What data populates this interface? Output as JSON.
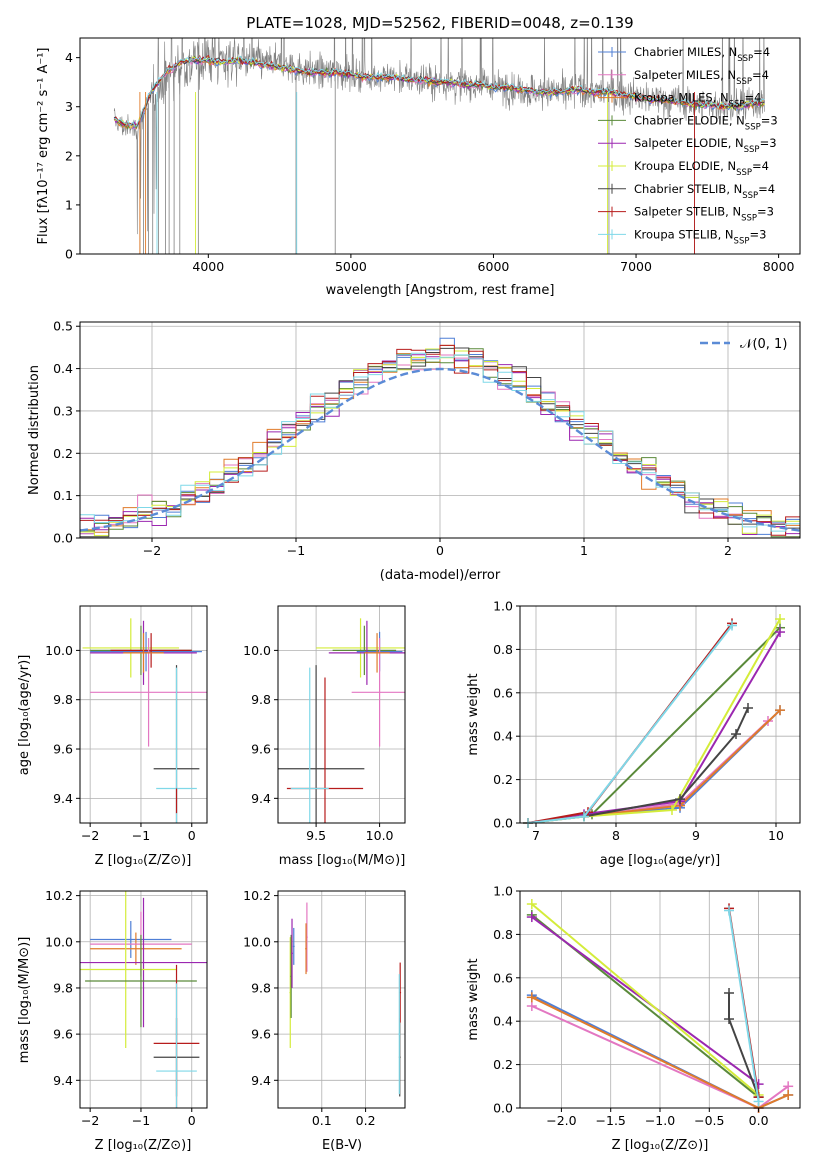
{
  "title": "PLATE=1028, MJD=52562, FIBERID=0048, z=0.139",
  "colors": {
    "Chabrier MILES": "#4f7fd6",
    "Salpeter MILES": "#e377c2",
    "Kroupa MILES": "#e07b2a",
    "Chabrier ELODIE": "#5a8a3a",
    "Salpeter ELODIE": "#9b27b0",
    "Kroupa ELODIE": "#d4ec3a",
    "Chabrier STELIB": "#444444",
    "Salpeter STELIB": "#b71c1c",
    "Kroupa STELIB": "#7fd8e8",
    "data": "#808080",
    "normal": "#5b8bd6"
  },
  "models": [
    "Chabrier MILES",
    "Salpeter MILES",
    "Kroupa MILES",
    "Chabrier ELODIE",
    "Salpeter ELODIE",
    "Kroupa ELODIE",
    "Chabrier STELIB",
    "Salpeter STELIB",
    "Kroupa STELIB"
  ],
  "panels": {
    "spectrum": {
      "xlabel": "wavelength [Angstrom, rest frame]",
      "ylabel": "Flux [fλ10⁻¹⁷ erg cm⁻² s⁻¹ A⁻¹]",
      "xticks": [
        "4000",
        "5000",
        "6000",
        "7000",
        "8000"
      ],
      "yticks": [
        "0",
        "1",
        "2",
        "3",
        "4"
      ],
      "legend": [
        {
          "name": "Chabrier MILES",
          "nssp": "4"
        },
        {
          "name": "Salpeter MILES",
          "nssp": "4"
        },
        {
          "name": "Kroupa MILES",
          "nssp": "4"
        },
        {
          "name": "Chabrier ELODIE",
          "nssp": "3"
        },
        {
          "name": "Salpeter ELODIE",
          "nssp": "3"
        },
        {
          "name": "Kroupa ELODIE",
          "nssp": "4"
        },
        {
          "name": "Chabrier STELIB",
          "nssp": "4"
        },
        {
          "name": "Salpeter STELIB",
          "nssp": "3"
        },
        {
          "name": "Kroupa STELIB",
          "nssp": "3"
        }
      ],
      "nssp_prefix": "N",
      "nssp_sub": "SSP"
    },
    "residuals": {
      "xlabel": "(data-model)/error",
      "ylabel": "Normed distribution",
      "xticks": [
        "−2",
        "−1",
        "0",
        "1",
        "2"
      ],
      "yticks": [
        "0.0",
        "0.1",
        "0.2",
        "0.3",
        "0.4",
        "0.5"
      ],
      "legend": "𝒩(0, 1)"
    },
    "age_vs_Z": {
      "xlabel": "Z [log₁₀(Z/Z⊙)]",
      "ylabel": "age  [log₁₀(age/yr)]",
      "xticks": [
        "−2",
        "−1",
        "0"
      ],
      "yticks": [
        "9.4",
        "9.6",
        "9.8",
        "10.0"
      ]
    },
    "age_vs_mass": {
      "xlabel": "mass [log₁₀(M/M⊙)]",
      "yticks": [
        "9.4",
        "9.6",
        "9.8",
        "10.0"
      ],
      "xticks": [
        "9.5",
        "10.0"
      ]
    },
    "mw_vs_age": {
      "xlabel": "age  [log₁₀(age/yr)]",
      "ylabel": "mass weight",
      "xticks": [
        "7",
        "8",
        "9",
        "10"
      ],
      "yticks": [
        "0.0",
        "0.2",
        "0.4",
        "0.6",
        "0.8",
        "1.0"
      ]
    },
    "mass_vs_Z": {
      "xlabel": "Z [log₁₀(Z/Z⊙)]",
      "ylabel": "mass [log₁₀(M/M⊙)]",
      "xticks": [
        "−2",
        "−1",
        "0"
      ],
      "yticks": [
        "9.4",
        "9.6",
        "9.8",
        "10.0",
        "10.2"
      ]
    },
    "mass_vs_ebv": {
      "xlabel": "E(B-V)",
      "xticks": [
        "0.1",
        "0.2"
      ],
      "yticks": [
        "9.4",
        "9.6",
        "9.8",
        "10.0",
        "10.2"
      ]
    },
    "mw_vs_Z": {
      "xlabel": "Z [log₁₀(Z/Z⊙)]",
      "ylabel": "mass weight",
      "xticks": [
        "−2.0",
        "−1.5",
        "−1.0",
        "−0.5",
        "0.0"
      ],
      "yticks": [
        "0.0",
        "0.2",
        "0.4",
        "0.6",
        "0.8",
        "1.0"
      ]
    }
  },
  "chart_data": [
    {
      "type": "line",
      "title": "PLATE=1028, MJD=52562, FIBERID=0048, z=0.139",
      "xlabel": "wavelength [Angstrom, rest frame]",
      "ylabel": "Flux [fλ10⁻¹⁷ erg cm⁻² s⁻¹ A⁻¹]",
      "xlim": [
        3100,
        8150
      ],
      "ylim": [
        0,
        4.4
      ],
      "grid": false,
      "legend_position": "right",
      "data_series": {
        "name": "data",
        "x": [
          3340,
          3400,
          3500,
          3600,
          3700,
          3800,
          3900,
          4000,
          4100,
          4200,
          4300,
          4400,
          4500,
          4600,
          4700,
          4800,
          4900,
          5000,
          5100,
          5200,
          5300,
          5400,
          5500,
          5600,
          5700,
          5800,
          5900,
          6000,
          6100,
          6200,
          6300,
          6400,
          6500,
          6600,
          6700,
          6800,
          6900,
          7000,
          7100,
          7200,
          7300,
          7400,
          7500,
          7600,
          7700,
          7800,
          7900
        ],
        "y": [
          2.75,
          2.6,
          2.55,
          3.2,
          3.6,
          3.8,
          3.9,
          4.0,
          3.95,
          4.0,
          3.95,
          3.9,
          3.85,
          3.8,
          3.75,
          3.7,
          3.75,
          3.65,
          3.6,
          3.6,
          3.6,
          3.55,
          3.55,
          3.5,
          3.5,
          3.45,
          3.45,
          3.4,
          3.4,
          3.35,
          3.3,
          3.3,
          3.3,
          3.35,
          3.3,
          3.3,
          3.25,
          3.2,
          3.15,
          3.15,
          3.1,
          3.05,
          3.05,
          3.0,
          3.0,
          3.05,
          3.1
        ]
      },
      "model_series": {
        "x": [
          3340,
          3400,
          3500,
          3600,
          3700,
          3800,
          3900,
          4000,
          4100,
          4200,
          4300,
          4400,
          4500,
          4600,
          4700,
          4800,
          4900,
          5000,
          5100,
          5200,
          5300,
          5400,
          5500,
          5600,
          5700,
          5800,
          5900,
          6000,
          6100,
          6200,
          6300,
          6400,
          6500,
          6600,
          6700,
          6800,
          6900,
          7000,
          7100,
          7200,
          7300,
          7400,
          7500,
          7600,
          7700,
          7800,
          7900
        ],
        "y": [
          2.75,
          2.65,
          2.6,
          3.3,
          3.7,
          3.9,
          3.95,
          3.95,
          3.9,
          3.95,
          3.9,
          3.85,
          3.8,
          3.75,
          3.7,
          3.7,
          3.7,
          3.65,
          3.6,
          3.6,
          3.6,
          3.55,
          3.55,
          3.5,
          3.5,
          3.45,
          3.45,
          3.4,
          3.4,
          3.35,
          3.3,
          3.3,
          3.3,
          3.35,
          3.3,
          3.3,
          3.25,
          3.2,
          3.15,
          3.15,
          3.1,
          3.05,
          3.05,
          3.0,
          3.0,
          3.05,
          3.1
        ]
      }
    },
    {
      "type": "line",
      "xlabel": "(data-model)/error",
      "ylabel": "Normed distribution",
      "xlim": [
        -2.5,
        2.5
      ],
      "ylim": [
        0,
        0.51
      ],
      "grid": true,
      "legend_position": "top-right",
      "normal": {
        "name": "𝒩(0, 1)",
        "mean": 0,
        "sigma": 1
      },
      "hist_bins": [
        -2.5,
        2.5,
        0.1
      ]
    },
    {
      "type": "scatter",
      "xlabel": "Z [log₁₀(Z/Z⊙)]",
      "ylabel": "age  [log₁₀(age/yr)]",
      "xlim": [
        -2.2,
        0.3
      ],
      "ylim": [
        9.3,
        10.18
      ]
    },
    {
      "type": "scatter",
      "xlabel": "mass [log₁₀(M/M⊙)]",
      "xlim": [
        9.2,
        10.2
      ],
      "ylim": [
        9.3,
        10.18
      ]
    },
    {
      "type": "line",
      "xlabel": "age  [log₁₀(age/yr)]",
      "ylabel": "mass weight",
      "xlim": [
        6.8,
        10.3
      ],
      "ylim": [
        0,
        1.0
      ],
      "series": [
        {
          "name": "Chabrier MILES",
          "x": [
            6.9,
            7.6,
            8.8,
            10.05
          ],
          "y": [
            0.0,
            0.03,
            0.07,
            0.52
          ]
        },
        {
          "name": "Salpeter MILES",
          "x": [
            6.9,
            7.6,
            8.8,
            9.9
          ],
          "y": [
            0.0,
            0.03,
            0.09,
            0.47
          ]
        },
        {
          "name": "Kroupa MILES",
          "x": [
            6.9,
            7.6,
            8.8,
            10.05
          ],
          "y": [
            0.0,
            0.03,
            0.08,
            0.52
          ]
        },
        {
          "name": "Chabrier ELODIE",
          "x": [
            6.9,
            7.7,
            10.05
          ],
          "y": [
            0.0,
            0.04,
            0.9
          ]
        },
        {
          "name": "Salpeter ELODIE",
          "x": [
            6.9,
            7.6,
            8.8,
            10.05
          ],
          "y": [
            0.0,
            0.04,
            0.1,
            0.88
          ]
        },
        {
          "name": "Kroupa ELODIE",
          "x": [
            6.9,
            7.6,
            8.7,
            10.05
          ],
          "y": [
            0.0,
            0.03,
            0.06,
            0.94
          ]
        },
        {
          "name": "Chabrier STELIB",
          "x": [
            7.6,
            8.8,
            9.5,
            9.65
          ],
          "y": [
            0.03,
            0.11,
            0.41,
            0.53
          ]
        },
        {
          "name": "Salpeter STELIB",
          "x": [
            6.9,
            7.65,
            9.45
          ],
          "y": [
            0.0,
            0.05,
            0.92
          ]
        },
        {
          "name": "Kroupa STELIB",
          "x": [
            6.9,
            7.6,
            9.45
          ],
          "y": [
            0.0,
            0.03,
            0.91
          ]
        }
      ]
    },
    {
      "type": "scatter",
      "xlabel": "Z [log₁₀(Z/Z⊙)]",
      "ylabel": "mass [log₁₀(M/M⊙)]",
      "xlim": [
        -2.2,
        0.3
      ],
      "ylim": [
        9.28,
        10.22
      ]
    },
    {
      "type": "scatter",
      "xlabel": "E(B-V)",
      "xlim": [
        0.0,
        0.29
      ],
      "ylim": [
        9.28,
        10.22
      ]
    },
    {
      "type": "line",
      "xlabel": "Z [log₁₀(Z/Z⊙)]",
      "ylabel": "mass weight",
      "xlim": [
        -2.42,
        0.42
      ],
      "ylim": [
        0,
        1.0
      ],
      "series": [
        {
          "name": "Chabrier MILES",
          "x": [
            -2.3,
            0.0,
            0.3
          ],
          "y": [
            0.52,
            0.0,
            0.06
          ]
        },
        {
          "name": "Salpeter MILES",
          "x": [
            -2.3,
            0.0,
            0.3
          ],
          "y": [
            0.47,
            0.0,
            0.1
          ]
        },
        {
          "name": "Kroupa MILES",
          "x": [
            -2.3,
            0.0,
            0.3
          ],
          "y": [
            0.51,
            0.0,
            0.06
          ]
        },
        {
          "name": "Chabrier ELODIE",
          "x": [
            -2.3,
            0.0
          ],
          "y": [
            0.89,
            0.05
          ]
        },
        {
          "name": "Salpeter ELODIE",
          "x": [
            -2.3,
            0.0
          ],
          "y": [
            0.88,
            0.11
          ]
        },
        {
          "name": "Kroupa ELODIE",
          "x": [
            -2.3,
            0.0
          ],
          "y": [
            0.94,
            0.06
          ]
        },
        {
          "name": "Chabrier STELIB",
          "x": [
            -0.3,
            -0.3,
            0.0
          ],
          "y": [
            0.53,
            0.41,
            0.05
          ]
        },
        {
          "name": "Salpeter STELIB",
          "x": [
            -0.3,
            0.0
          ],
          "y": [
            0.92,
            0.05
          ]
        },
        {
          "name": "Kroupa STELIB",
          "x": [
            -0.3,
            0.0
          ],
          "y": [
            0.91,
            0.03
          ]
        }
      ]
    }
  ]
}
